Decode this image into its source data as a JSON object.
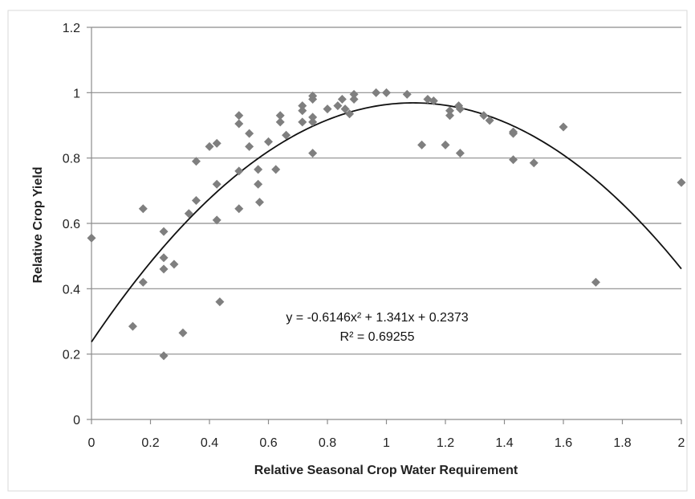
{
  "chart_data": {
    "type": "scatter",
    "xlabel": "Relative Seasonal Crop Water Requirement",
    "ylabel": "Relative Crop Yield",
    "xlim": [
      0,
      2
    ],
    "ylim": [
      0,
      1.2
    ],
    "x_ticks": [
      "0",
      "0.2",
      "0.4",
      "0.6",
      "0.8",
      "1",
      "1.2",
      "1.4",
      "1.6",
      "1.8",
      "2"
    ],
    "y_ticks": [
      "0",
      "0.2",
      "0.4",
      "0.6",
      "0.8",
      "1",
      "1.2"
    ],
    "grid": "horizontal",
    "marker_color": "#7f7f7f",
    "trendline": {
      "type": "polynomial",
      "a": -0.6146,
      "b": 1.341,
      "c": 0.2373,
      "color": "#111111",
      "equation_text": "y = -0.6146x² + 1.341x + 0.2373",
      "r2_text": "R² = 0.69255"
    },
    "points": [
      [
        0.0,
        0.555
      ],
      [
        0.14,
        0.285
      ],
      [
        0.175,
        0.645
      ],
      [
        0.175,
        0.42
      ],
      [
        0.245,
        0.575
      ],
      [
        0.245,
        0.495
      ],
      [
        0.245,
        0.46
      ],
      [
        0.245,
        0.195
      ],
      [
        0.28,
        0.475
      ],
      [
        0.31,
        0.265
      ],
      [
        0.33,
        0.63
      ],
      [
        0.355,
        0.79
      ],
      [
        0.355,
        0.67
      ],
      [
        0.4,
        0.835
      ],
      [
        0.425,
        0.845
      ],
      [
        0.425,
        0.72
      ],
      [
        0.425,
        0.61
      ],
      [
        0.435,
        0.36
      ],
      [
        0.5,
        0.93
      ],
      [
        0.5,
        0.905
      ],
      [
        0.5,
        0.76
      ],
      [
        0.5,
        0.645
      ],
      [
        0.535,
        0.875
      ],
      [
        0.535,
        0.835
      ],
      [
        0.565,
        0.765
      ],
      [
        0.565,
        0.72
      ],
      [
        0.57,
        0.665
      ],
      [
        0.6,
        0.85
      ],
      [
        0.625,
        0.765
      ],
      [
        0.64,
        0.93
      ],
      [
        0.64,
        0.91
      ],
      [
        0.66,
        0.87
      ],
      [
        0.715,
        0.96
      ],
      [
        0.715,
        0.945
      ],
      [
        0.715,
        0.91
      ],
      [
        0.75,
        0.99
      ],
      [
        0.75,
        0.98
      ],
      [
        0.75,
        0.925
      ],
      [
        0.75,
        0.91
      ],
      [
        0.75,
        0.815
      ],
      [
        0.8,
        0.95
      ],
      [
        0.835,
        0.96
      ],
      [
        0.85,
        0.98
      ],
      [
        0.86,
        0.95
      ],
      [
        0.875,
        0.935
      ],
      [
        0.89,
        0.995
      ],
      [
        0.89,
        0.98
      ],
      [
        0.965,
        1.0
      ],
      [
        1.0,
        1.0
      ],
      [
        1.07,
        0.995
      ],
      [
        1.12,
        0.84
      ],
      [
        1.14,
        0.98
      ],
      [
        1.16,
        0.975
      ],
      [
        1.2,
        0.84
      ],
      [
        1.215,
        0.945
      ],
      [
        1.215,
        0.93
      ],
      [
        1.245,
        0.96
      ],
      [
        1.25,
        0.95
      ],
      [
        1.25,
        0.815
      ],
      [
        1.33,
        0.93
      ],
      [
        1.35,
        0.915
      ],
      [
        1.43,
        0.88
      ],
      [
        1.43,
        0.875
      ],
      [
        1.43,
        0.795
      ],
      [
        1.5,
        0.785
      ],
      [
        1.6,
        0.895
      ],
      [
        1.71,
        0.42
      ],
      [
        2.0,
        0.725
      ]
    ]
  }
}
